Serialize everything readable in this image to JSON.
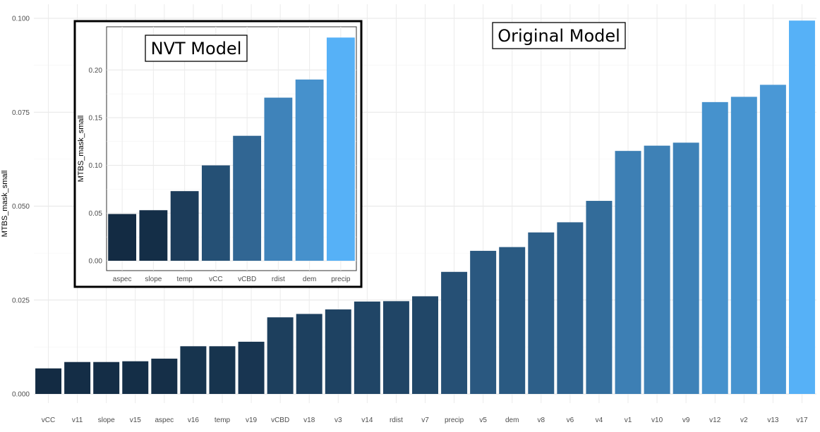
{
  "chart_data": [
    {
      "type": "bar",
      "title": "",
      "xlabel": "",
      "ylabel": "MTBS_mask_small",
      "ylim": [
        0,
        0.1
      ],
      "yticks": [
        "0.000",
        "0.025",
        "0.050",
        "0.075",
        "0.100"
      ],
      "grid": true,
      "annotation": "Original Model",
      "categories": [
        "vCC",
        "v11",
        "slope",
        "v15",
        "aspec",
        "v16",
        "temp",
        "v19",
        "vCBD",
        "v18",
        "v3",
        "v14",
        "rdist",
        "v7",
        "precip",
        "v5",
        "dem",
        "v8",
        "v6",
        "v4",
        "v1",
        "v10",
        "v9",
        "v12",
        "v2",
        "v13",
        "v17"
      ],
      "values": [
        0.0068,
        0.0085,
        0.0085,
        0.0087,
        0.0094,
        0.0127,
        0.0127,
        0.0139,
        0.0204,
        0.0213,
        0.0225,
        0.0246,
        0.0247,
        0.026,
        0.0325,
        0.0381,
        0.0391,
        0.043,
        0.0457,
        0.0514,
        0.0647,
        0.0661,
        0.0669,
        0.0777,
        0.0791,
        0.0823,
        0.0994
      ]
    },
    {
      "type": "bar",
      "title": "",
      "xlabel": "",
      "ylabel": "MTBS_mask_small",
      "ylim": [
        0,
        0.23
      ],
      "yticks": [
        "0.00",
        "0.05",
        "0.10",
        "0.15",
        "0.20"
      ],
      "grid": true,
      "annotation": "NVT Model",
      "categories": [
        "aspec",
        "slope",
        "temp",
        "vCC",
        "vCBD",
        "rdist",
        "dem",
        "precip"
      ],
      "values": [
        0.049,
        0.053,
        0.073,
        0.1,
        0.131,
        0.171,
        0.19,
        0.234
      ]
    }
  ]
}
